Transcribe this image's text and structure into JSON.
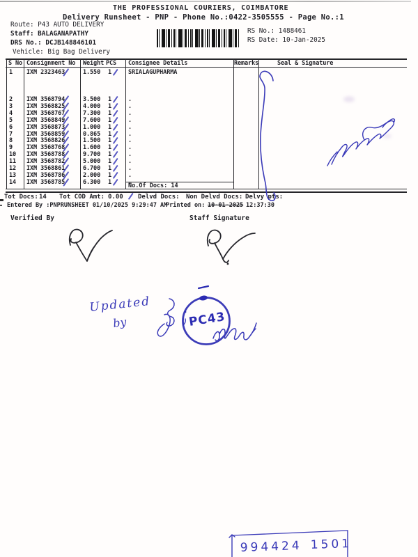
{
  "doc": {
    "title": "THE PROFESSIONAL COURIERS, COIMBATORE",
    "subtitle": "Delivery Runsheet - PNP - Phone No.:0422-3505555 - Page No.:1",
    "info": {
      "route_line": "Route: P43 AUTO DELIVERY",
      "staff_line": "Staff: BALAGANAPATHY",
      "drs_line": "DRS No.: DCJB148846101",
      "vehicle_line": "Vehicle: Big Bag Delivery",
      "rs_no_line": "RS No.: 1488461",
      "rs_date_line": "RS Date: 10-Jan-2025"
    },
    "table": {
      "header": {
        "sno": "S No",
        "consignment": "Consignment No",
        "weight": "Weight",
        "pcs": "PCS",
        "consignee": "Consignee Details",
        "remarks": "Remarks",
        "seal": "Seal & Signature"
      },
      "rows": [
        {
          "sno": "1",
          "consignment": "IXM 2323463",
          "weight": "1.550",
          "pcs": "1",
          "consignee": "SRIALAGUPHARMA"
        },
        {
          "sno": "2",
          "consignment": "IXM 3568794",
          "weight": "3.500",
          "pcs": "1",
          "consignee": "."
        },
        {
          "sno": "3",
          "consignment": "IXM 3568825",
          "weight": "4.000",
          "pcs": "1",
          "consignee": "."
        },
        {
          "sno": "4",
          "consignment": "IXM 3568767",
          "weight": "7.300",
          "pcs": "1",
          "consignee": "."
        },
        {
          "sno": "5",
          "consignment": "IXM 3568849",
          "weight": "7.600",
          "pcs": "1",
          "consignee": "."
        },
        {
          "sno": "6",
          "consignment": "IXM 3568873",
          "weight": "1.000",
          "pcs": "1",
          "consignee": "."
        },
        {
          "sno": "7",
          "consignment": "IXM 3568859",
          "weight": "0.865",
          "pcs": "1",
          "consignee": "."
        },
        {
          "sno": "8",
          "consignment": "IXM 3568826",
          "weight": "1.500",
          "pcs": "1",
          "consignee": "."
        },
        {
          "sno": "9",
          "consignment": "IXM 3568768",
          "weight": "1.600",
          "pcs": "1",
          "consignee": "."
        },
        {
          "sno": "10",
          "consignment": "IXM 3568788",
          "weight": "9.700",
          "pcs": "1",
          "consignee": "."
        },
        {
          "sno": "11",
          "consignment": "IXM 3568782",
          "weight": "5.000",
          "pcs": "1",
          "consignee": "."
        },
        {
          "sno": "12",
          "consignment": "IXM 3568861",
          "weight": "6.700",
          "pcs": "1",
          "consignee": "."
        },
        {
          "sno": "13",
          "consignment": "IXM 3568786",
          "weight": "2.000",
          "pcs": "1",
          "consignee": "."
        },
        {
          "sno": "14",
          "consignment": "IXM 3568785",
          "weight": "6.300",
          "pcs": "1",
          "consignee": "."
        }
      ],
      "no_of_docs": "No.Of Docs: 14"
    },
    "totals": {
      "tot_docs_label": "Tot Docs:",
      "tot_docs_value": "14",
      "cod_label": "Tot COD Amt:",
      "cod_value": "0.00",
      "delvd_label": "Delvd Docs:",
      "non_delvd_label": "Non Delvd Docs:",
      "delvy_label": "Delvy pts:"
    },
    "footer": {
      "entered_line": "Entered By :PNPRUNSHEET 01/10/2025 9:29:47 AM",
      "printed_label": "Printed on:",
      "printed_date": "10-01-2025",
      "printed_time": "12:37:30",
      "verified_label": "Verified By",
      "staff_sig_label": "Staff Signature"
    },
    "annotations": {
      "updated_word": "Updated",
      "by_word": "by",
      "stamp_code": "PC43",
      "phone_number": "9944241501"
    },
    "colors": {
      "ink_blue": "#3a3ab8",
      "stamp_blue": "#2b2bb2",
      "print_ink": "#1e1e24"
    }
  }
}
